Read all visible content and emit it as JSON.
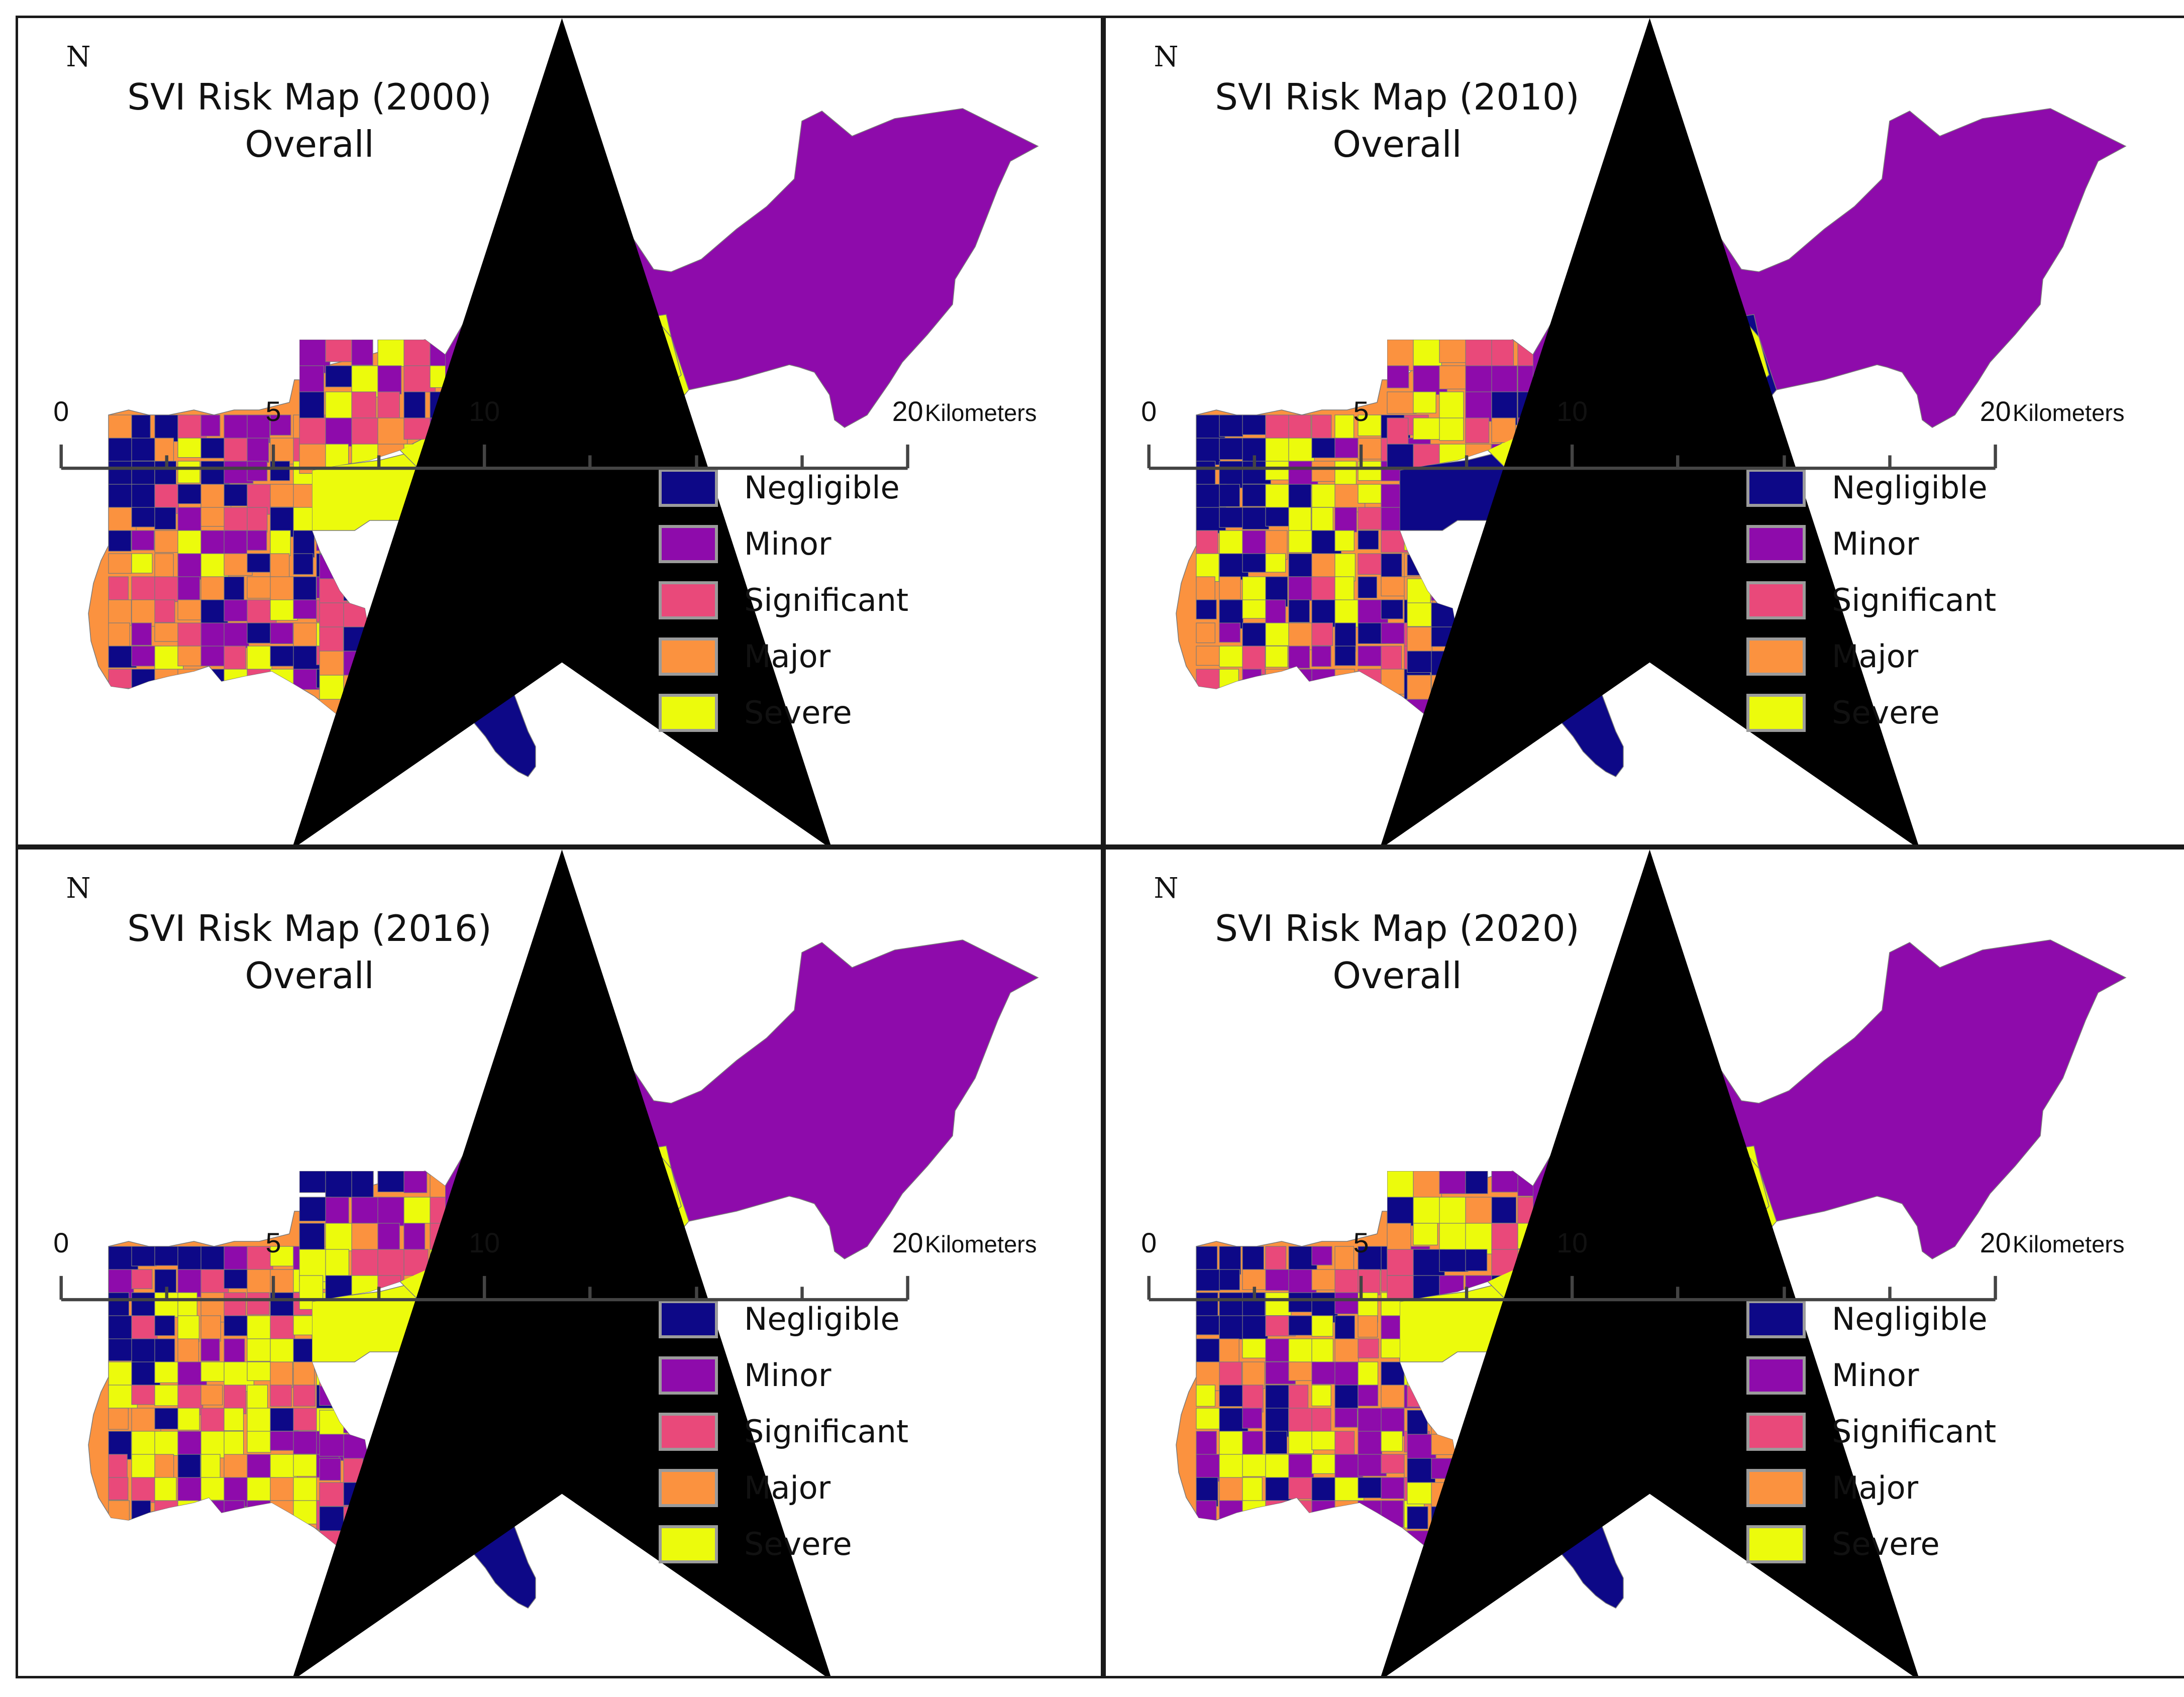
{
  "figure": {
    "panels": [
      {
        "title_line1": "SVI Risk Map (2000)",
        "title_line2": "Overall",
        "year": "2000",
        "northeast_lowland_class": "severe",
        "central_band_class": "severe"
      },
      {
        "title_line1": "SVI Risk Map (2010)",
        "title_line2": "Overall",
        "year": "2010",
        "northeast_lowland_class": "negligible",
        "central_band_class": "severe"
      },
      {
        "title_line1": "SVI Risk Map (2016)",
        "title_line2": "Overall",
        "year": "2016",
        "northeast_lowland_class": "severe",
        "central_band_class": "severe"
      },
      {
        "title_line1": "SVI Risk Map (2020)",
        "title_line2": "Overall",
        "year": "2020",
        "northeast_lowland_class": "severe",
        "central_band_class": "severe"
      }
    ],
    "north_label": "N",
    "legend": [
      {
        "key": "negligible",
        "label": "Negligible",
        "color": "#0d0887"
      },
      {
        "key": "minor",
        "label": "Minor",
        "color": "#8e0bab"
      },
      {
        "key": "significant",
        "label": "Significant",
        "color": "#e9497a"
      },
      {
        "key": "major",
        "label": "Major",
        "color": "#fb923f"
      },
      {
        "key": "severe",
        "label": "Severe",
        "color": "#ecfb0c"
      }
    ],
    "scale_bar": {
      "ticks": [
        "0",
        "5",
        "10",
        "20"
      ],
      "unit": "Kilometers"
    }
  }
}
